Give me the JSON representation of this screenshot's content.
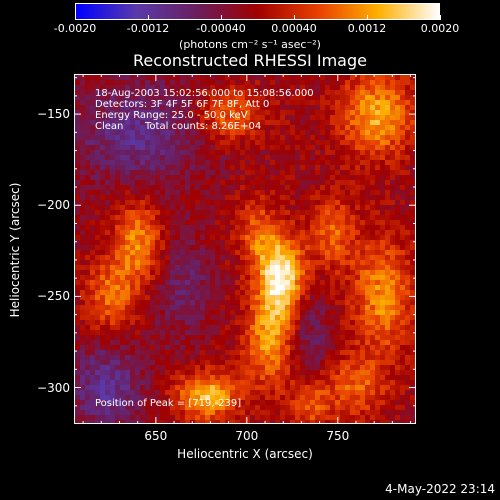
{
  "colorbar": {
    "ticks": [
      "-0.0020",
      "-0.0012",
      "-0.00040",
      "0.00040",
      "0.0012",
      "0.0020"
    ],
    "tick_values": [
      -0.002,
      -0.0012,
      -0.0004,
      0.0004,
      0.0012,
      0.002
    ],
    "range": [
      -0.002,
      0.002
    ],
    "units": "(photons cm⁻² s⁻¹ asec⁻²)",
    "colors": [
      "#0000ff",
      "#5a3aaa",
      "#6a1e5e",
      "#a00000",
      "#e84000",
      "#ffb000",
      "#ffffff"
    ]
  },
  "info": {
    "line1": "18-Aug-2003 15:02:56.000 to 15:08:56.000",
    "line2": "Detectors: 3F 4F 5F 6F 7F 8F, Att 0",
    "line3": "Energy Range: 25.0 - 50.0 keV",
    "line4_label": "Clean",
    "line4_counts": "Total counts: 8.26E+04",
    "peak": "Position of Peak = [719,-239]"
  },
  "timestamp": "4-May-2022 23:14",
  "chart_data": {
    "type": "heatmap",
    "title": "Reconstructed RHESSI Image",
    "xlabel": "Heliocentric X (arcsec)",
    "ylabel": "Heliocentric Y (arcsec)",
    "xlim": [
      605,
      793
    ],
    "ylim": [
      -320,
      -128
    ],
    "xticks": [
      650,
      700,
      750
    ],
    "xtick_labels": [
      "650",
      "700",
      "750"
    ],
    "yticks": [
      -150,
      -200,
      -250,
      -300
    ],
    "ytick_labels": [
      "−150",
      "−200",
      "−250",
      "−300"
    ],
    "peak": [
      719,
      -239
    ],
    "value_range": [
      -0.002,
      0.002
    ],
    "features": [
      {
        "x": 719,
        "y": -239,
        "value": 0.002,
        "sx": 9,
        "sy": 16
      },
      {
        "x": 712,
        "y": -275,
        "value": 0.0012,
        "sx": 10,
        "sy": 18
      },
      {
        "x": 705,
        "y": -215,
        "value": 0.0008,
        "sx": 8,
        "sy": 14
      },
      {
        "x": 678,
        "y": -305,
        "value": 0.0016,
        "sx": 12,
        "sy": 9
      },
      {
        "x": 640,
        "y": -220,
        "value": 0.0012,
        "sx": 10,
        "sy": 16
      },
      {
        "x": 625,
        "y": -250,
        "value": 0.001,
        "sx": 10,
        "sy": 14
      },
      {
        "x": 690,
        "y": -150,
        "value": 0.001,
        "sx": 14,
        "sy": 10
      },
      {
        "x": 772,
        "y": -150,
        "value": 0.0014,
        "sx": 14,
        "sy": 16
      },
      {
        "x": 775,
        "y": -250,
        "value": 0.0012,
        "sx": 12,
        "sy": 22
      },
      {
        "x": 748,
        "y": -215,
        "value": 0.0009,
        "sx": 9,
        "sy": 14
      },
      {
        "x": 760,
        "y": -300,
        "value": 0.0009,
        "sx": 12,
        "sy": 12
      },
      {
        "x": 735,
        "y": -310,
        "value": 0.0008,
        "sx": 8,
        "sy": 10
      },
      {
        "x": 640,
        "y": -160,
        "value": -0.0009,
        "sx": 25,
        "sy": 20
      },
      {
        "x": 665,
        "y": -245,
        "value": -0.0006,
        "sx": 12,
        "sy": 20
      },
      {
        "x": 622,
        "y": -300,
        "value": -0.001,
        "sx": 14,
        "sy": 16
      },
      {
        "x": 735,
        "y": -270,
        "value": -0.0006,
        "sx": 8,
        "sy": 16
      }
    ]
  }
}
